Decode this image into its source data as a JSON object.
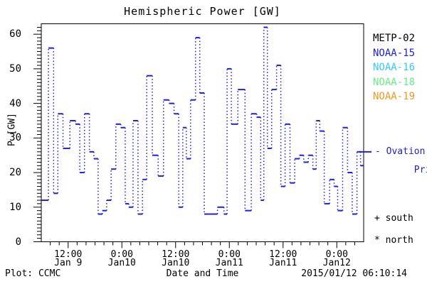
{
  "title": "Hemispheric Power [GW]",
  "colors": {
    "axis": "#000000",
    "data_blue": "#2222cd",
    "metp02": "#000000",
    "noaa15": "#2222cd",
    "noaa16": "#33ccff",
    "noaa18": "#66ee88",
    "noaa19": "#ee9922"
  },
  "y_axis": {
    "label": "P [GW]",
    "major_ticks": [
      0,
      10,
      20,
      30,
      40,
      50,
      60
    ],
    "minor_step": 1,
    "max": 63
  },
  "x_axis": {
    "label": "Date and Time",
    "hours_total": 72,
    "start": "2015-01-09 06:00",
    "minor_step_hours": 2,
    "major_ticks": [
      {
        "t": 6,
        "time": "12:00",
        "date": "Jan 9"
      },
      {
        "t": 18,
        "time": "0:00",
        "date": "Jan10"
      },
      {
        "t": 30,
        "time": "12:00",
        "date": "Jan10"
      },
      {
        "t": 42,
        "time": "0:00",
        "date": "Jan11"
      },
      {
        "t": 54,
        "time": "12:00",
        "date": "Jan11"
      },
      {
        "t": 66,
        "time": "0:00",
        "date": "Jan12"
      }
    ]
  },
  "legend": [
    {
      "label": "METP-02",
      "color": "#000000"
    },
    {
      "label": "NOAA-15",
      "color": "#2222cd"
    },
    {
      "label": "NOAA-16",
      "color": "#33ccff"
    },
    {
      "label": "NOAA-18",
      "color": "#66ee88"
    },
    {
      "label": "NOAA-19",
      "color": "#ee9922"
    }
  ],
  "annotations": {
    "ovation_line1": "- Ovation",
    "ovation_line2": "Prime HPI",
    "ovation_value_gw": 26,
    "south_marker": "+ south",
    "north_marker": "* north"
  },
  "footer": {
    "left": "Plot: CCMC",
    "right": "2015/01/12 06:10:14"
  },
  "chart_data": {
    "type": "line",
    "subtype": "histogram-step, dotted vertical connectors, solid level caps",
    "series_name": "Ovation Prime HPI",
    "color": "#2222cd",
    "title": "Hemispheric Power [GW]",
    "xlabel": "Date and Time",
    "ylabel": "P [GW]",
    "ylim": [
      0,
      63
    ],
    "x_unit": "hours after 2015-01-09 06:00 UT",
    "points": [
      [
        1.0,
        12
      ],
      [
        2.2,
        56
      ],
      [
        3.3,
        14
      ],
      [
        4.1,
        37
      ],
      [
        5.6,
        27
      ],
      [
        7.2,
        35
      ],
      [
        8.1,
        34
      ],
      [
        9.1,
        20
      ],
      [
        10.2,
        37
      ],
      [
        11.3,
        26
      ],
      [
        12.2,
        24
      ],
      [
        13.2,
        8
      ],
      [
        14.1,
        9
      ],
      [
        15.1,
        12
      ],
      [
        16.1,
        21
      ],
      [
        17.2,
        34
      ],
      [
        18.3,
        33
      ],
      [
        19.2,
        11
      ],
      [
        19.9,
        10
      ],
      [
        21.1,
        35
      ],
      [
        22.1,
        8
      ],
      [
        23.1,
        18
      ],
      [
        24.0,
        48
      ],
      [
        25.6,
        25
      ],
      [
        26.6,
        19
      ],
      [
        28.0,
        41
      ],
      [
        29.1,
        40
      ],
      [
        30.2,
        37
      ],
      [
        31.2,
        10
      ],
      [
        32.0,
        33
      ],
      [
        32.8,
        24
      ],
      [
        33.9,
        41
      ],
      [
        35.0,
        59
      ],
      [
        35.8,
        43
      ],
      [
        37.0,
        8
      ],
      [
        38.3,
        8
      ],
      [
        40.4,
        10
      ],
      [
        41.2,
        8
      ],
      [
        41.8,
        50
      ],
      [
        43.1,
        34
      ],
      [
        44.7,
        44
      ],
      [
        46.3,
        9
      ],
      [
        47.5,
        37
      ],
      [
        48.7,
        36
      ],
      [
        49.3,
        12
      ],
      [
        50.1,
        62
      ],
      [
        50.9,
        27
      ],
      [
        52.0,
        44
      ],
      [
        53.1,
        51
      ],
      [
        53.9,
        16
      ],
      [
        55.0,
        34
      ],
      [
        56.1,
        17
      ],
      [
        57.1,
        24
      ],
      [
        58.2,
        25
      ],
      [
        59.0,
        23
      ],
      [
        60.3,
        25
      ],
      [
        61.0,
        21
      ],
      [
        61.8,
        35
      ],
      [
        62.6,
        32
      ],
      [
        63.8,
        11
      ],
      [
        65.0,
        18
      ],
      [
        65.8,
        16
      ],
      [
        66.6,
        9
      ],
      [
        68.0,
        33
      ],
      [
        68.8,
        20
      ],
      [
        70.1,
        8
      ],
      [
        70.9,
        26
      ],
      [
        71.7,
        22
      ]
    ]
  }
}
